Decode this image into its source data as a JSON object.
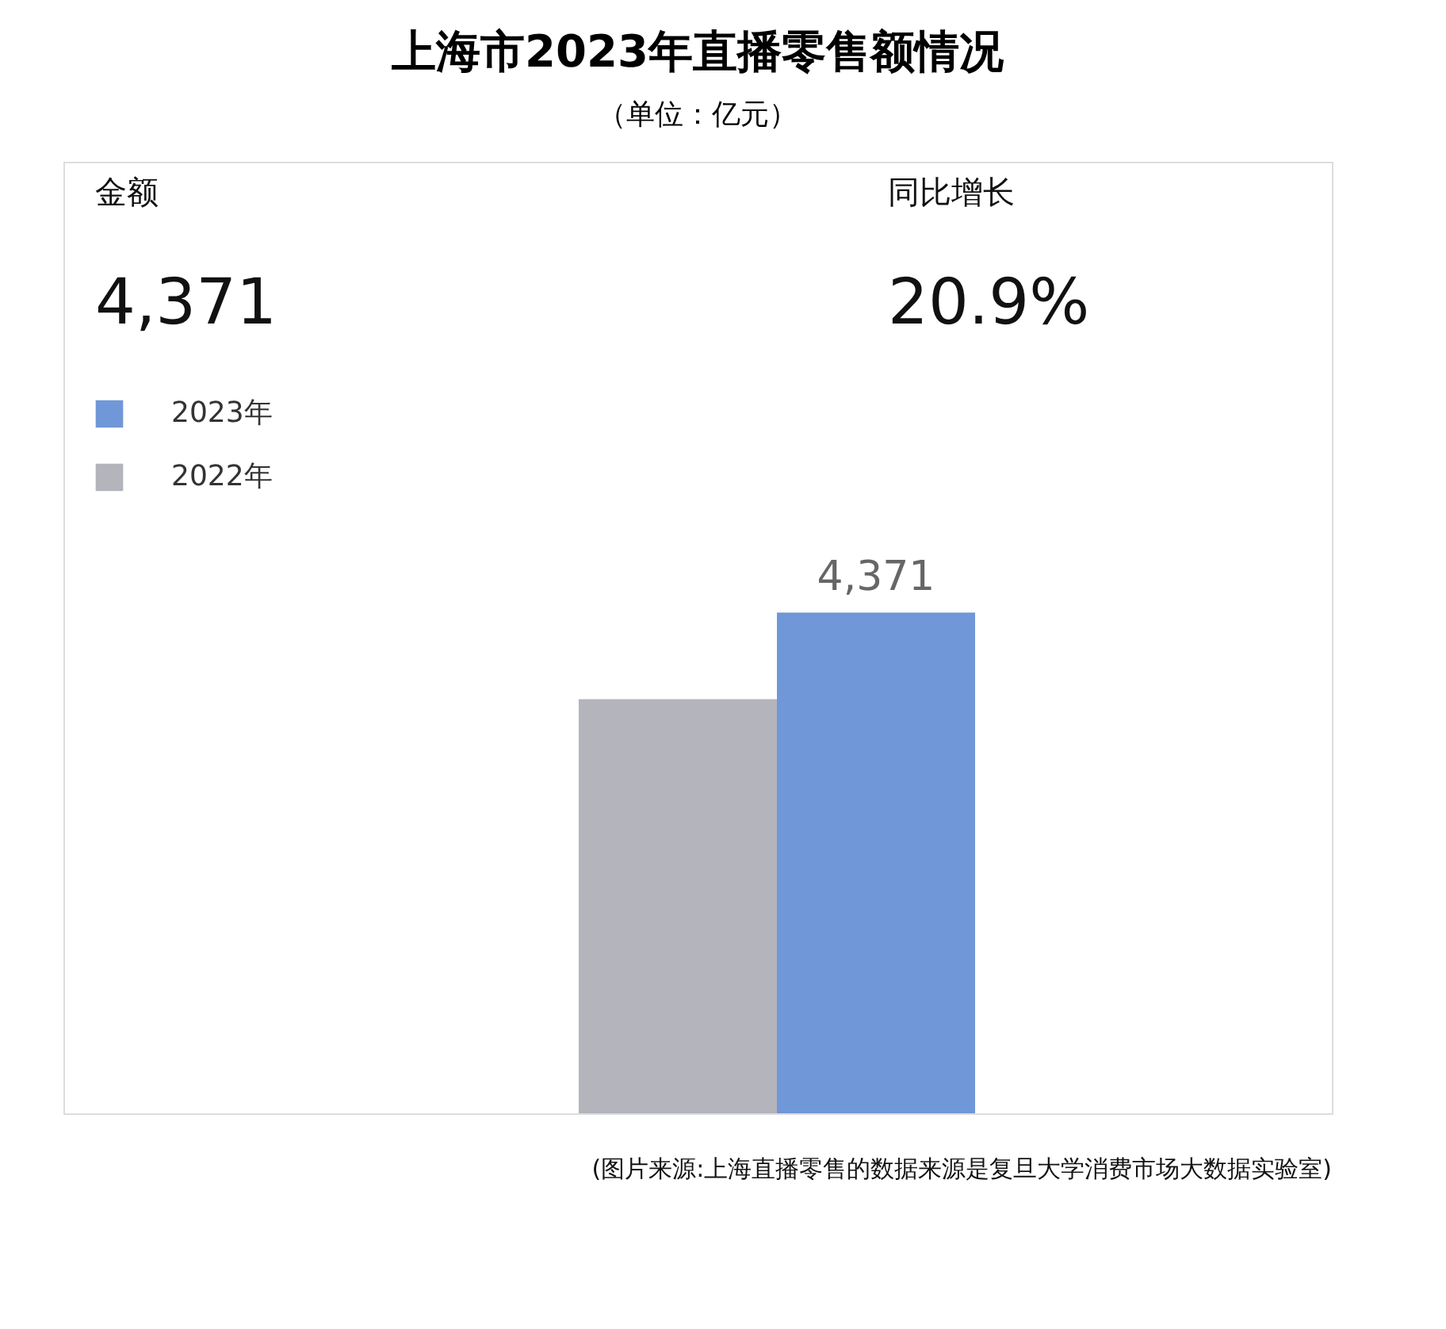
{
  "chart_data": {
    "type": "bar",
    "title": "上海市2023年直播零售额情况",
    "subtitle": "（单位：亿元）",
    "categories": [
      null,
      null
    ],
    "legend": "top left",
    "stacked": true,
    "series": [
      {
        "name": "2023年",
        "color": "#7097d8",
        "values": [
          null,
          4371
        ],
        "value_labels": [
          null,
          "4,371"
        ]
      },
      {
        "name": "2022年",
        "color": "#b4b4bc",
        "values": [
          3615,
          null
        ]
      }
    ],
    "annotations": [
      "金额",
      "4,371",
      "同比增长",
      "20.9%",
      "(图片来源:上海直播零售的数据来源是复旦大学消费市场大数据实验室)"
    ]
  }
}
